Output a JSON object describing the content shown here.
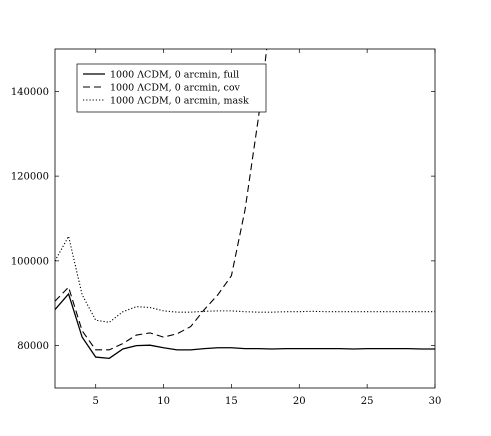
{
  "chart_data": {
    "type": "line",
    "title": "",
    "xlabel": "",
    "ylabel": "",
    "xlim": [
      2,
      30
    ],
    "ylim": [
      70000,
      150000
    ],
    "xticks": [
      5,
      10,
      15,
      20,
      25,
      30
    ],
    "yticks": [
      80000,
      100000,
      120000,
      140000
    ],
    "xtick_labels": [
      "5",
      "10",
      "15",
      "20",
      "25",
      "30"
    ],
    "ytick_labels": [
      "80000",
      "100000",
      "120000",
      "140000"
    ],
    "grid": false,
    "legend_position": "top-left",
    "series": [
      {
        "name": "1000 ΛCDM, 0 arcmin, full",
        "style": "solid",
        "color": "#000000",
        "x": [
          2,
          3,
          4,
          5,
          6,
          7,
          8,
          9,
          10,
          11,
          12,
          13,
          14,
          15,
          16,
          17,
          18,
          19,
          20,
          21,
          22,
          23,
          24,
          25,
          26,
          27,
          28,
          29,
          30
        ],
        "y": [
          88500,
          92200,
          82000,
          77300,
          77000,
          79200,
          80000,
          80100,
          79500,
          79000,
          79000,
          79300,
          79500,
          79500,
          79300,
          79300,
          79200,
          79300,
          79300,
          79300,
          79300,
          79300,
          79200,
          79300,
          79300,
          79300,
          79300,
          79200,
          79200
        ]
      },
      {
        "name": "1000 ΛCDM, 0 arcmin, cov",
        "style": "dashed",
        "color": "#000000",
        "x": [
          2,
          3,
          4,
          5,
          6,
          7,
          8,
          9,
          10,
          11,
          12,
          13,
          14,
          15,
          16,
          17,
          17.6
        ],
        "y": [
          90500,
          93800,
          83500,
          79000,
          79000,
          80500,
          82500,
          83000,
          82000,
          82800,
          84500,
          88500,
          92000,
          96500,
          112000,
          134000,
          150000
        ]
      },
      {
        "name": "1000 ΛCDM, 0 arcmin, mask",
        "style": "dotted",
        "color": "#000000",
        "x": [
          2,
          3,
          4,
          5,
          6,
          7,
          8,
          9,
          10,
          11,
          12,
          13,
          14,
          15,
          16,
          17,
          18,
          19,
          20,
          21,
          22,
          23,
          24,
          25,
          26,
          27,
          28,
          29,
          30
        ],
        "y": [
          100000,
          105800,
          92000,
          86000,
          85500,
          88000,
          89200,
          89000,
          88200,
          87900,
          87900,
          88100,
          88200,
          88200,
          88000,
          87900,
          87900,
          88000,
          88000,
          88100,
          88000,
          88000,
          88000,
          88000,
          88000,
          88000,
          88000,
          88000,
          88000
        ]
      }
    ]
  }
}
